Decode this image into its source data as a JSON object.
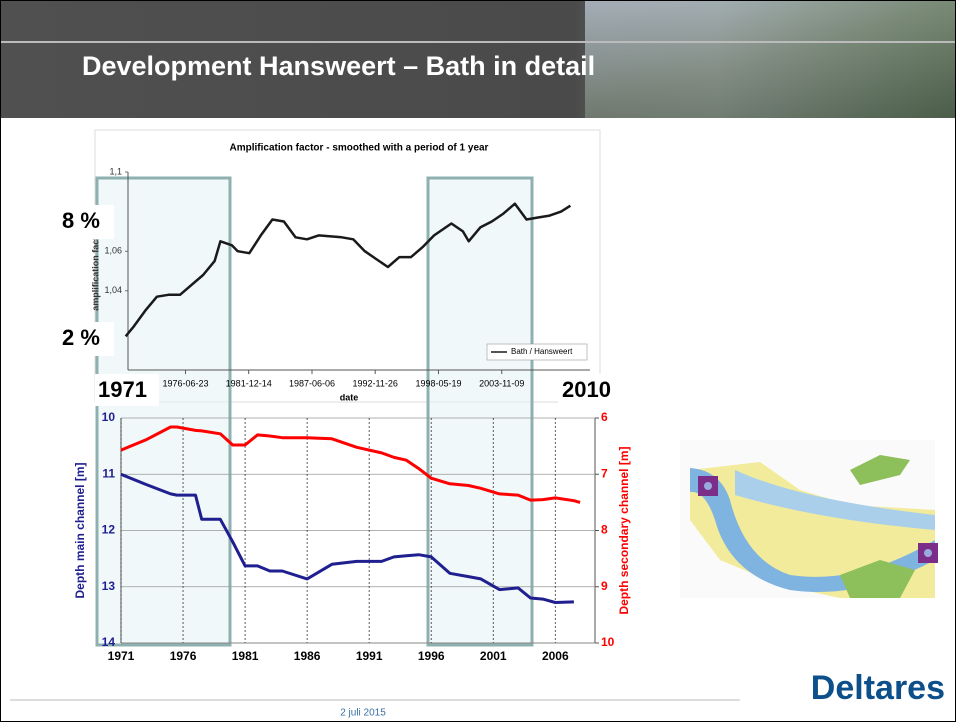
{
  "slide": {
    "title": "Development Hansweert – Bath in detail",
    "overlays": [
      "8 %",
      "2 %",
      "1971",
      "2010"
    ],
    "logo": "Deltares",
    "date": "2 juli 2015"
  },
  "chart_data": [
    {
      "type": "line",
      "title": "Amplification factor - smoothed with a period of 1 year",
      "x_label": "date",
      "y_label": "amplification facto",
      "x": [
        1971.3,
        1972,
        1973,
        1974,
        1975,
        1976,
        1977,
        1978,
        1979,
        1979.5,
        1980.5,
        1981,
        1982,
        1983,
        1984,
        1985,
        1986,
        1987,
        1988,
        1990,
        1991,
        1992,
        1993,
        1994,
        1995,
        1996,
        1997,
        1998,
        1999.5,
        2000.5,
        2001,
        2002,
        2003,
        2004,
        2005,
        2006,
        2007,
        2008,
        2009,
        2009.8
      ],
      "series": [
        {
          "name": "Bath / Hansweert",
          "color": "#1a1a1a",
          "values": [
            1.017,
            1.022,
            1.03,
            1.037,
            1.038,
            1.038,
            1.043,
            1.048,
            1.055,
            1.065,
            1.063,
            1.06,
            1.059,
            1.068,
            1.076,
            1.075,
            1.067,
            1.066,
            1.068,
            1.067,
            1.066,
            1.06,
            1.056,
            1.052,
            1.057,
            1.057,
            1.062,
            1.068,
            1.074,
            1.07,
            1.065,
            1.072,
            1.075,
            1.079,
            1.084,
            1.076,
            1.077,
            1.078,
            1.08,
            1.083
          ]
        }
      ],
      "xlim": [
        1971.5,
        2011.5
      ],
      "xticks": [
        {
          "value": 1976.48,
          "label": "1976-06-23"
        },
        {
          "value": 1981.95,
          "label": "1981-12-14"
        },
        {
          "value": 1987.43,
          "label": "1987-06-06"
        },
        {
          "value": 1992.9,
          "label": "1992-11-26"
        },
        {
          "value": 1998.38,
          "label": "1998-05-19"
        },
        {
          "value": 2003.86,
          "label": "2003-11-09"
        }
      ],
      "ylim": [
        1.0,
        1.1
      ],
      "yticks": [
        {
          "value": 1.1,
          "label": "1,1"
        },
        {
          "value": 1.06,
          "label": "1,06"
        },
        {
          "value": 1.04,
          "label": "1,04"
        }
      ],
      "legend": "bottom-right"
    },
    {
      "type": "line",
      "y_label": "Depth main channel [m]",
      "y2_label": "Depth secondary channel [m]",
      "x": [
        1971,
        1973,
        1975,
        1975.5,
        1977,
        1977.5,
        1979,
        1980,
        1981,
        1982,
        1983,
        1984,
        1986,
        1988,
        1990,
        1992,
        1993,
        1994,
        1995,
        1996,
        1997.5,
        1999,
        2000,
        2001.5,
        2003,
        2004,
        2005,
        2006,
        2007.5,
        2008
      ],
      "series": [
        {
          "color": "#1f1f8f",
          "values": [
            11.0,
            11.18,
            11.35,
            11.37,
            11.37,
            11.8,
            11.8,
            12.2,
            12.63,
            12.63,
            12.72,
            12.72,
            12.86,
            12.6,
            12.55,
            12.55,
            12.47,
            12.45,
            12.43,
            12.47,
            12.76,
            12.82,
            12.86,
            13.05,
            13.02,
            13.2,
            13.22,
            13.28,
            13.27,
            null
          ]
        },
        {
          "color": "#ff0000",
          "axis": "y2",
          "values": [
            6.57,
            6.39,
            6.16,
            6.16,
            6.22,
            6.23,
            6.28,
            6.48,
            6.48,
            6.3,
            6.32,
            6.35,
            6.35,
            6.37,
            6.52,
            6.62,
            6.7,
            6.75,
            6.9,
            7.07,
            7.17,
            7.2,
            7.25,
            7.35,
            7.37,
            7.46,
            7.45,
            7.42,
            7.47,
            7.5
          ]
        }
      ],
      "xlim": [
        1971,
        2009.2
      ],
      "xticks": [
        1971,
        1976,
        1981,
        1986,
        1991,
        1996,
        2001,
        2006
      ],
      "ylim": [
        14,
        10
      ],
      "yticks": [
        10,
        11,
        12,
        13,
        14
      ],
      "y2lim": [
        10,
        6
      ],
      "y2ticks": [
        6,
        7,
        8,
        9,
        10
      ],
      "grid": true
    }
  ]
}
